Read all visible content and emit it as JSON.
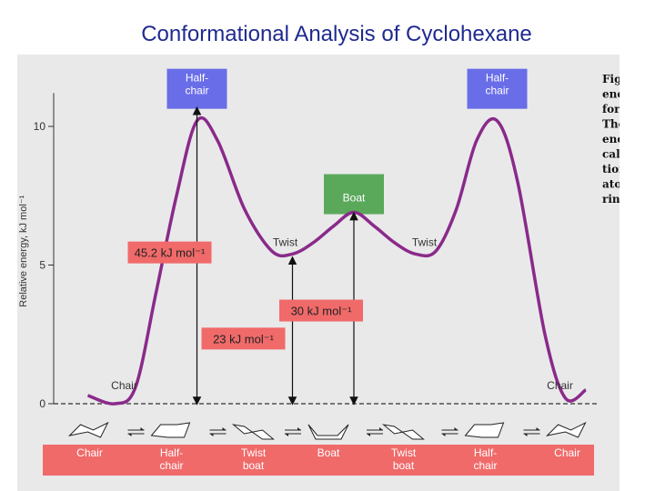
{
  "slide": {
    "title": "Conformational Analysis of Cyclohexane"
  },
  "chart_data": {
    "type": "line",
    "ylabel": "Relative energy, kJ mol⁻¹",
    "yticks": [
      0,
      5,
      10
    ],
    "ylim": [
      0,
      11
    ],
    "curve": {
      "x": [
        0.5,
        0.9,
        1.2,
        1.5,
        1.8,
        2.1,
        2.4,
        2.8,
        3.2,
        3.5,
        3.8,
        4.1,
        4.4,
        4.7,
        5.0,
        5.3,
        5.6,
        5.9,
        6.2,
        6.5,
        6.8,
        7.2,
        7.5,
        7.8
      ],
      "y": [
        0.3,
        0.0,
        0.6,
        4.0,
        7.5,
        10.2,
        9.5,
        7.0,
        5.5,
        5.4,
        5.8,
        6.4,
        6.9,
        6.4,
        5.8,
        5.4,
        5.5,
        7.0,
        9.5,
        10.2,
        8.0,
        2.5,
        0.2,
        0.5
      ]
    },
    "states": [
      {
        "name": "Chart_chair_l",
        "label": "Chair",
        "x": 0.9,
        "energy": 0
      },
      {
        "name": "half_chair_l",
        "label": "Half-\nchair",
        "x": 2.1,
        "energy": 10.7,
        "box": true,
        "box_color": "#6a6de8"
      },
      {
        "name": "twist_l",
        "label": "Twist",
        "x": 3.5,
        "energy": 5.3
      },
      {
        "name": "boat",
        "label": "Boat",
        "x": 4.4,
        "energy": 6.9,
        "box": true,
        "box_color": "#5aa85a"
      },
      {
        "name": "twist_r",
        "label": "Twist",
        "x": 5.3,
        "energy": 5.3
      },
      {
        "name": "half_chair_r",
        "label": "Half-\nchair",
        "x": 6.5,
        "energy": 10.7,
        "box": true,
        "box_color": "#6a6de8"
      },
      {
        "name": "chair_r",
        "label": "Chair",
        "x": 7.5,
        "energy": 0
      }
    ],
    "energy_annotations": [
      {
        "label": "45.2 kJ mol⁻¹",
        "x": 2.1,
        "top": 10.7
      },
      {
        "label": "23 kJ mol⁻¹",
        "x": 3.5,
        "top": 5.3
      },
      {
        "label": "30 kJ mol⁻¹",
        "x": 4.4,
        "top": 6.9
      }
    ],
    "bottom_labels": [
      {
        "text": "Chair",
        "x": 0.5
      },
      {
        "text": "Half-\nchair",
        "x": 1.7
      },
      {
        "text": "Twist\nboat",
        "x": 2.9
      },
      {
        "text": "Boat",
        "x": 4.0
      },
      {
        "text": "Twist\nboat",
        "x": 5.1
      },
      {
        "text": "Half-\nchair",
        "x": 6.3
      },
      {
        "text": "Chair",
        "x": 7.5
      }
    ],
    "equilibrium_arrows": [
      1.1,
      2.3,
      3.4,
      4.6,
      5.7,
      6.9
    ],
    "caption_fragments": [
      "Fig",
      "ene",
      "for",
      "The",
      "ene",
      "cal",
      "tion",
      "ato",
      "rin"
    ],
    "colors": {
      "curve": "#8a2a8a",
      "annotation_box": "#f06a6a",
      "bottom_band": "#f06a6a",
      "background": "#e9e9ea"
    }
  }
}
